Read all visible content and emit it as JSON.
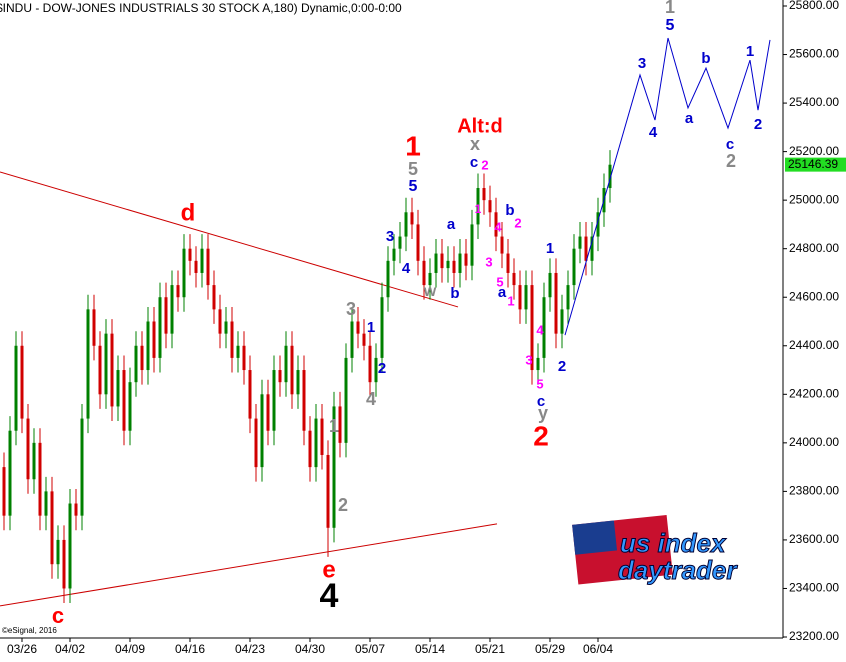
{
  "chart_data": {
    "type": "candlestick",
    "title": "$INDU - DOW-JONES INDUSTRIALS 30 STOCK A,180) Dynamic,0:00-0:00",
    "copyright": "©eSignal, 2016",
    "categories": [
      null,
      null,
      null,
      "03/26",
      null,
      null,
      null,
      null,
      null,
      null,
      null,
      "04/02",
      null,
      null,
      null,
      null,
      null,
      null,
      null,
      null,
      null,
      "04/09",
      null,
      null,
      null,
      null,
      null,
      null,
      null,
      null,
      null,
      "04/16",
      null,
      null,
      null,
      null,
      null,
      null,
      null,
      null,
      null,
      "04/23",
      null,
      null,
      null,
      null,
      null,
      null,
      null,
      null,
      null,
      "04/30",
      null,
      null,
      null,
      null,
      null,
      null,
      null,
      null,
      null,
      "05/07",
      null,
      null,
      null,
      null,
      null,
      null,
      null,
      null,
      null,
      "05/14",
      null,
      null,
      null,
      null,
      null,
      null,
      null,
      null,
      null,
      "05/21",
      null,
      null,
      null,
      null,
      null,
      null,
      null,
      null,
      null,
      "05/29",
      null,
      null,
      null,
      null,
      null,
      null,
      null,
      "06/04",
      null,
      null
    ],
    "open": [
      23900,
      23700,
      24050,
      24400,
      24100,
      23850,
      24000,
      23700,
      23800,
      23500,
      23600,
      23400,
      23750,
      23700,
      24100,
      24550,
      24400,
      24200,
      24450,
      24150,
      24300,
      24050,
      24250,
      24400,
      24300,
      24500,
      24350,
      24600,
      24450,
      24650,
      24600,
      24800,
      24750,
      24700,
      24800,
      24650,
      24550,
      24450,
      24500,
      24350,
      24400,
      24300,
      24100,
      23900,
      24200,
      24050,
      24300,
      24250,
      24400,
      24200,
      24300,
      24050,
      23900,
      24100,
      23950,
      23650,
      24150,
      24000,
      24350,
      24500,
      24450,
      24400,
      24250,
      24350,
      24600,
      24750,
      24800,
      24850,
      24950,
      24900,
      24750,
      24650,
      24700,
      24780,
      24720,
      24750,
      24700,
      24780,
      24730,
      24900,
      25050,
      25000,
      24950,
      24850,
      24780,
      24700,
      24650,
      24550,
      24650,
      24300,
      24350,
      24600,
      24700,
      24450,
      24550,
      24650,
      24800,
      24850,
      24750,
      24850,
      24950,
      25050
    ],
    "high": [
      23960,
      24110,
      24460,
      24460,
      24160,
      24060,
      24060,
      23860,
      23860,
      23660,
      23660,
      23810,
      23810,
      24160,
      24610,
      24610,
      24460,
      24510,
      24510,
      24360,
      24360,
      24310,
      24460,
      24460,
      24560,
      24560,
      24660,
      24660,
      24710,
      24710,
      24860,
      24860,
      24810,
      24860,
      24860,
      24710,
      24610,
      24560,
      24560,
      24460,
      24460,
      24360,
      24160,
      24260,
      24260,
      24360,
      24360,
      24460,
      24460,
      24360,
      24360,
      24110,
      24160,
      24160,
      24010,
      24210,
      24210,
      24410,
      24560,
      24560,
      24510,
      24460,
      24410,
      24660,
      24810,
      24860,
      24910,
      25010,
      25010,
      24960,
      24810,
      24760,
      24840,
      24840,
      24810,
      24810,
      24840,
      24840,
      24960,
      25110,
      25110,
      25060,
      25010,
      24910,
      24840,
      24760,
      24710,
      24710,
      24710,
      24410,
      24660,
      24760,
      24760,
      24610,
      24710,
      24860,
      24910,
      24910,
      24910,
      25010,
      25110,
      25206
    ],
    "low": [
      23640,
      23640,
      23990,
      24040,
      23790,
      23790,
      23640,
      23640,
      23440,
      23440,
      23340,
      23340,
      23640,
      23640,
      24040,
      24340,
      24140,
      24140,
      24090,
      24090,
      23990,
      23990,
      24190,
      24240,
      24240,
      24290,
      24290,
      24390,
      24390,
      24540,
      24540,
      24690,
      24640,
      24640,
      24590,
      24490,
      24390,
      24390,
      24290,
      24290,
      24240,
      24040,
      23840,
      23840,
      23990,
      23990,
      24190,
      24190,
      24140,
      24140,
      23990,
      23840,
      23840,
      23890,
      23530,
      23590,
      23940,
      23940,
      24290,
      24390,
      24340,
      24190,
      24190,
      24290,
      24540,
      24690,
      24740,
      24790,
      24840,
      24690,
      24590,
      24590,
      24640,
      24660,
      24660,
      24640,
      24640,
      24670,
      24670,
      24840,
      24940,
      24890,
      24790,
      24720,
      24640,
      24590,
      24490,
      24490,
      24240,
      24240,
      24290,
      24540,
      24390,
      24390,
      24490,
      24590,
      24740,
      24690,
      24690,
      24790,
      24890,
      24990
    ],
    "close": [
      23700,
      24050,
      24400,
      24100,
      23850,
      24000,
      23700,
      23800,
      23500,
      23600,
      23400,
      23750,
      23700,
      24100,
      24550,
      24400,
      24200,
      24450,
      24150,
      24300,
      24050,
      24250,
      24400,
      24300,
      24500,
      24350,
      24600,
      24450,
      24650,
      24600,
      24800,
      24750,
      24700,
      24800,
      24650,
      24550,
      24450,
      24500,
      24350,
      24400,
      24300,
      24100,
      23900,
      24200,
      24050,
      24300,
      24250,
      24400,
      24200,
      24300,
      24050,
      23900,
      24100,
      23950,
      23650,
      24150,
      24000,
      24350,
      24500,
      24450,
      24400,
      24250,
      24350,
      24600,
      24750,
      24800,
      24850,
      24950,
      24900,
      24750,
      24650,
      24700,
      24780,
      24720,
      24750,
      24700,
      24780,
      24730,
      24900,
      25050,
      25000,
      24950,
      24850,
      24780,
      24700,
      24650,
      24550,
      24650,
      24300,
      24350,
      24600,
      24700,
      24450,
      24550,
      24650,
      24800,
      24850,
      24750,
      24850,
      24950,
      25050,
      25146
    ],
    "up_color": "#008000",
    "down_color": "#d00000",
    "ylim": [
      23200,
      25800
    ],
    "yticks": [
      {
        "value": 23200,
        "label": "23200.00"
      },
      {
        "value": 23400,
        "label": "23400.00"
      },
      {
        "value": 23600,
        "label": "23600.00"
      },
      {
        "value": 23800,
        "label": "23800.00"
      },
      {
        "value": 24000,
        "label": "24000.00"
      },
      {
        "value": 24200,
        "label": "24200.00"
      },
      {
        "value": 24400,
        "label": "24400.00"
      },
      {
        "value": 24600,
        "label": "24600.00"
      },
      {
        "value": 24800,
        "label": "24800.00"
      },
      {
        "value": 25000,
        "label": "25000.00"
      },
      {
        "value": 25200,
        "label": "25200.00"
      },
      {
        "value": 25400,
        "label": "25400.00"
      },
      {
        "value": 25600,
        "label": "25600.00"
      },
      {
        "value": 25800,
        "label": "25800.00"
      }
    ],
    "last_price": 25146.39,
    "last_price_color": "#22dd22",
    "trendlines": [
      {
        "color": "#cc0000",
        "values": [
          25116,
          24560
        ]
      },
      {
        "color": "#cc0000",
        "values": [
          23328,
          23666
        ]
      }
    ],
    "projection": {
      "color": "#0000cc",
      "values": [
        24444,
        25516,
        25330,
        25668,
        25380,
        25544,
        25297,
        25577,
        25371,
        25660
      ]
    },
    "annotations": [
      {
        "text": "d",
        "color": "#ff0000"
      },
      {
        "text": "1",
        "color": "#ff0000"
      },
      {
        "text": "Alt:d",
        "color": "#ff0000"
      },
      {
        "text": "2",
        "color": "#ff0000"
      },
      {
        "text": "e",
        "color": "#ff0000"
      },
      {
        "text": "c",
        "color": "#ff0000"
      },
      {
        "text": "4",
        "color": "#000000"
      },
      {
        "text": "1",
        "color": "#888888"
      },
      {
        "text": "5",
        "color": "#888888"
      },
      {
        "text": "5",
        "color": "#0000cc"
      },
      {
        "text": "x",
        "color": "#888888"
      },
      {
        "text": "c",
        "color": "#0000cc"
      },
      {
        "text": "2",
        "color": "#ff00ff"
      },
      {
        "text": "w",
        "color": "#888888"
      },
      {
        "text": "b",
        "color": "#0000cc"
      },
      {
        "text": "3",
        "color": "#888888"
      },
      {
        "text": "1",
        "color": "#0000cc"
      },
      {
        "text": "2",
        "color": "#0000cc"
      },
      {
        "text": "4",
        "color": "#888888"
      },
      {
        "text": "1",
        "color": "#888888"
      },
      {
        "text": "2",
        "color": "#888888"
      },
      {
        "text": "3",
        "color": "#0000cc"
      },
      {
        "text": "4",
        "color": "#0000cc"
      },
      {
        "text": "a",
        "color": "#0000cc"
      },
      {
        "text": "1",
        "color": "#ff00ff"
      },
      {
        "text": "b",
        "color": "#0000cc"
      },
      {
        "text": "2",
        "color": "#ff00ff"
      },
      {
        "text": "4",
        "color": "#ff00ff"
      },
      {
        "text": "3",
        "color": "#ff00ff"
      },
      {
        "text": "5",
        "color": "#ff00ff"
      },
      {
        "text": "a",
        "color": "#0000cc"
      },
      {
        "text": "1",
        "color": "#ff00ff"
      },
      {
        "text": "4",
        "color": "#ff00ff"
      },
      {
        "text": "3",
        "color": "#ff00ff"
      },
      {
        "text": "2",
        "color": "#0000cc"
      },
      {
        "text": "5",
        "color": "#ff00ff"
      },
      {
        "text": "c",
        "color": "#0000cc"
      },
      {
        "text": "y",
        "color": "#888888"
      },
      {
        "text": "1",
        "color": "#0000cc"
      },
      {
        "text": "3",
        "color": "#0000cc"
      },
      {
        "text": "4",
        "color": "#0000cc"
      },
      {
        "text": "5",
        "color": "#0000cc"
      },
      {
        "text": "a",
        "color": "#0000cc"
      },
      {
        "text": "b",
        "color": "#0000cc"
      },
      {
        "text": "c",
        "color": "#0000cc"
      },
      {
        "text": "2",
        "color": "#888888"
      },
      {
        "text": "1",
        "color": "#0000cc"
      },
      {
        "text": "2",
        "color": "#0000cc"
      }
    ],
    "logo": {
      "line1": "us index",
      "line2": "daytrader"
    }
  }
}
